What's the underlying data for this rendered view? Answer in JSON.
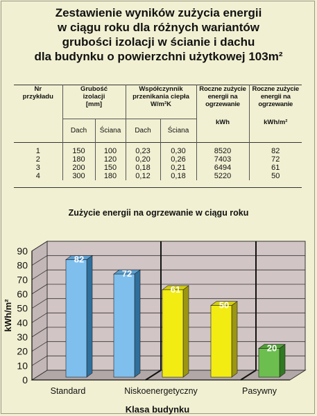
{
  "title_lines": [
    "Zestawienie wyników zużycia energii",
    "w ciągu roku dla różnych wariantów",
    "grubości izolacji w ścianie i dachu",
    "dla budynku o powierzchni użytkowej 103m²"
  ],
  "table": {
    "h_nr": "Nr przykładu",
    "h_thickness": "Grubość izolacji [mm]",
    "h_coef_1": "Współczynnik przenikania ciepła",
    "h_coef_2": "W/m²K",
    "h_energy1": "Roczne zużycie energii na ogrzewanie",
    "h_energy2": "Roczne zużycie energii na ogrzewanie",
    "sub_dach": "Dach",
    "sub_sciana": "Ściana",
    "sub_dach2": "Dach",
    "sub_sciana2": "Ściana",
    "unit1": "kWh",
    "unit2": "kWh/m²",
    "rows": [
      {
        "nr": "1",
        "dach": "150",
        "sciana": "100",
        "u_dach": "0,23",
        "u_sciana": "0,30",
        "kwh": "8520",
        "kwhm2": "82"
      },
      {
        "nr": "2",
        "dach": "180",
        "sciana": "120",
        "u_dach": "0,20",
        "u_sciana": "0,26",
        "kwh": "7403",
        "kwhm2": "72"
      },
      {
        "nr": "3",
        "dach": "200",
        "sciana": "150",
        "u_dach": "0,18",
        "u_sciana": "0,21",
        "kwh": "6494",
        "kwhm2": "61"
      },
      {
        "nr": "4",
        "dach": "300",
        "sciana": "180",
        "u_dach": "0,12",
        "u_sciana": "0,18",
        "kwh": "5220",
        "kwhm2": "50"
      }
    ]
  },
  "chart_data": {
    "type": "bar",
    "title": "Zużycie energii na ogrzewanie w ciągu roku",
    "xlabel": "Klasa budynku",
    "ylabel": "kWh/m²",
    "ylim": [
      0,
      90
    ],
    "yticks": [
      0,
      10,
      20,
      30,
      40,
      50,
      60,
      70,
      80,
      90
    ],
    "values": [
      82,
      72,
      61,
      50,
      20
    ],
    "bar_classes": [
      "Standard",
      "Standard",
      "Niskoenergetyczny",
      "Niskoenergetyczny",
      "Pasywny"
    ],
    "bar_colors": [
      "#7fbfee",
      "#7fbfee",
      "#f2ec12",
      "#f2ec12",
      "#6cbf4e"
    ],
    "classes": [
      "Standard",
      "Niskoenergetyczny",
      "Pasywny"
    ],
    "grid": true,
    "wall_color": "#d2c5c5"
  }
}
